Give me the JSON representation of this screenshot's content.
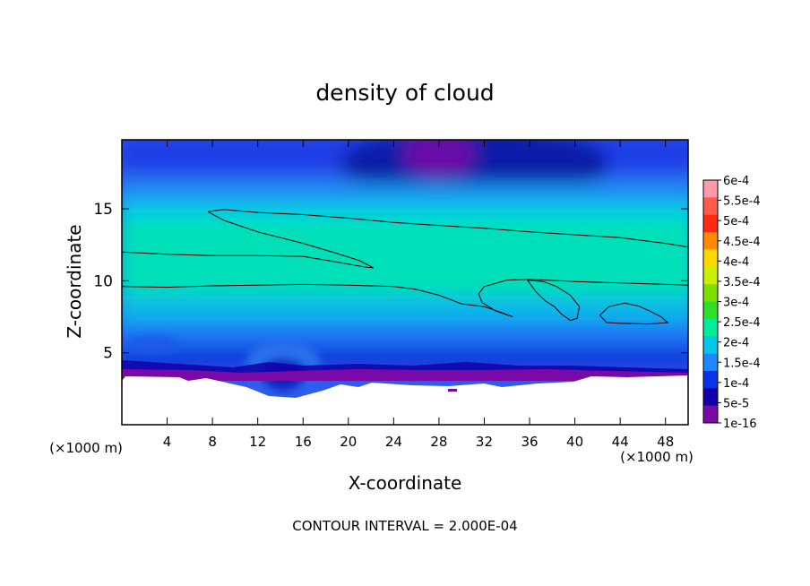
{
  "chart_data": {
    "type": "heatmap",
    "title": "density of cloud",
    "xlabel": "X-coordinate",
    "ylabel": "Z-coordinate",
    "x_unit": "(×1000 m)",
    "y_unit": "(×1000 m)",
    "footer": "CONTOUR INTERVAL = 2.000E-04",
    "xlim": [
      0,
      50
    ],
    "ylim": [
      0,
      19.8
    ],
    "x_ticks": [
      4,
      8,
      12,
      16,
      20,
      24,
      28,
      32,
      36,
      40,
      44,
      48
    ],
    "y_ticks": [
      5,
      10,
      15
    ],
    "colorbar": {
      "labels": [
        "6e-4",
        "5.5e-4",
        "5e-4",
        "4.5e-4",
        "4e-4",
        "3.5e-4",
        "3e-4",
        "2.5e-4",
        "2e-4",
        "1.5e-4",
        "1e-4",
        "5e-5",
        "1e-16"
      ],
      "colors": [
        "#ff9aa8",
        "#ff5a4a",
        "#ff2a10",
        "#ff8a00",
        "#ffd800",
        "#c8f000",
        "#7ce000",
        "#2ee02a",
        "#00ee9a",
        "#00c8e6",
        "#1e86ff",
        "#0a32e8",
        "#1200a8",
        "#7a0aa8"
      ]
    },
    "contour_lines": [
      {
        "level": "2e-4",
        "points": [
          [
            7.6,
            14.8
          ],
          [
            9,
            14.95
          ],
          [
            12,
            14.75
          ],
          [
            16,
            14.6
          ],
          [
            20,
            14.35
          ],
          [
            24,
            14.05
          ],
          [
            28,
            13.85
          ],
          [
            32,
            13.65
          ],
          [
            36,
            13.4
          ],
          [
            40,
            13.2
          ],
          [
            44,
            13.0
          ],
          [
            48,
            12.6
          ],
          [
            50,
            12.35
          ]
        ]
      },
      {
        "level": "2e-4",
        "points": [
          [
            7.6,
            14.8
          ],
          [
            9,
            14.2
          ],
          [
            12,
            13.4
          ],
          [
            16,
            12.6
          ],
          [
            19,
            11.9
          ],
          [
            21,
            11.4
          ],
          [
            22.2,
            10.9
          ],
          [
            21.5,
            10.95
          ],
          [
            19,
            11.3
          ],
          [
            16,
            11.7
          ],
          [
            12,
            11.75
          ],
          [
            8,
            11.75
          ],
          [
            4,
            11.85
          ],
          [
            0,
            12.0
          ]
        ]
      },
      {
        "level": "2e-4",
        "points": [
          [
            0,
            9.6
          ],
          [
            4,
            9.55
          ],
          [
            8,
            9.65
          ],
          [
            12,
            9.7
          ],
          [
            16,
            9.75
          ],
          [
            20,
            9.7
          ],
          [
            24,
            9.6
          ],
          [
            26,
            9.4
          ],
          [
            28,
            9.0
          ],
          [
            30,
            8.4
          ],
          [
            32,
            8.2
          ],
          [
            33.5,
            7.8
          ],
          [
            34.5,
            7.5
          ],
          [
            33,
            7.9
          ],
          [
            31.8,
            8.5
          ],
          [
            31.5,
            9.1
          ],
          [
            32,
            9.6
          ],
          [
            34,
            10.05
          ],
          [
            36,
            10.1
          ],
          [
            40,
            9.95
          ],
          [
            44,
            9.85
          ],
          [
            48,
            9.75
          ],
          [
            50,
            9.7
          ]
        ]
      },
      {
        "level": "2e-4",
        "points": [
          [
            35.8,
            10.05
          ],
          [
            36.6,
            9.2
          ],
          [
            37.4,
            8.6
          ],
          [
            38.2,
            8.2
          ],
          [
            38.8,
            7.7
          ],
          [
            39.6,
            7.25
          ],
          [
            40.2,
            7.4
          ],
          [
            40.4,
            8.2
          ],
          [
            39.6,
            9.0
          ],
          [
            38.4,
            9.6
          ],
          [
            37.2,
            9.95
          ],
          [
            35.8,
            10.05
          ]
        ]
      },
      {
        "level": "2e-4",
        "points": [
          [
            42.2,
            7.6
          ],
          [
            43,
            8.2
          ],
          [
            44.4,
            8.45
          ],
          [
            45.6,
            8.25
          ],
          [
            46.6,
            7.9
          ],
          [
            47.6,
            7.5
          ],
          [
            48.2,
            7.1
          ],
          [
            46.5,
            7.0
          ],
          [
            44,
            7.05
          ],
          [
            42.8,
            7.1
          ],
          [
            42.2,
            7.6
          ]
        ]
      }
    ]
  }
}
